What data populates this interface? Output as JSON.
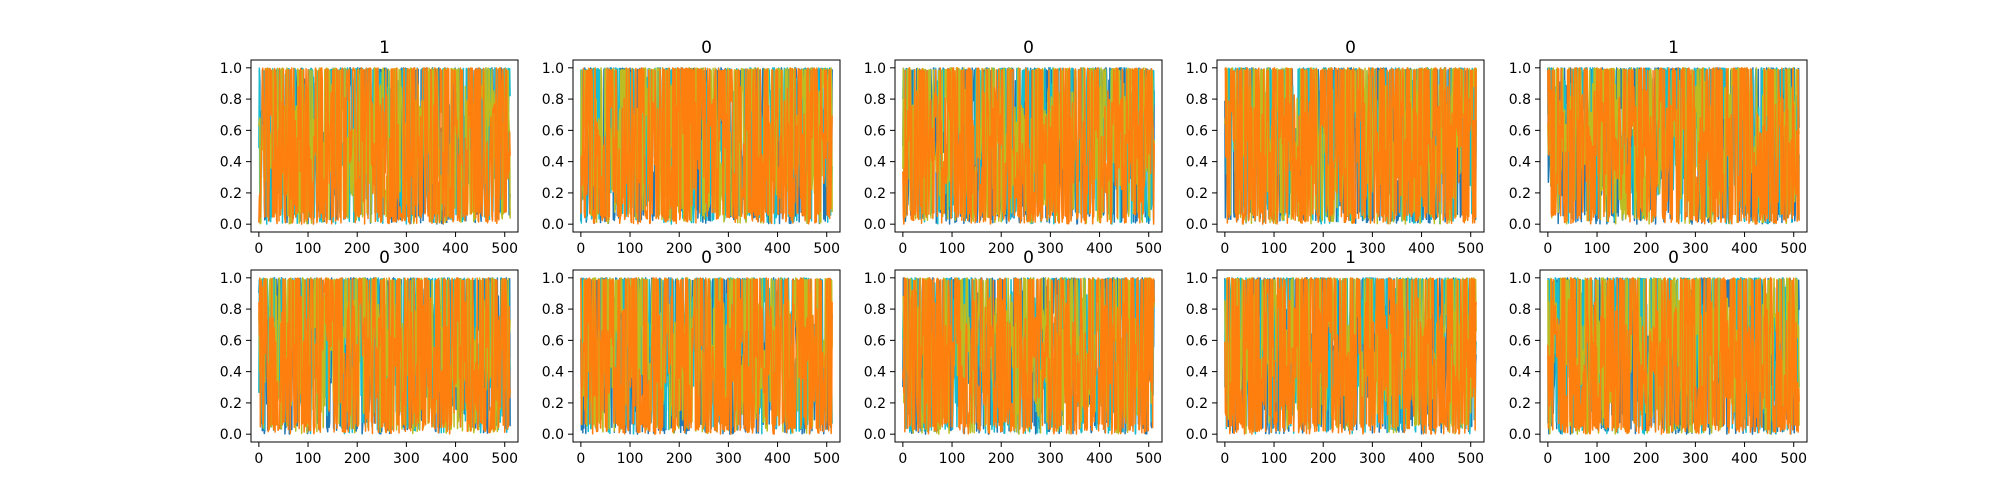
{
  "figure": {
    "layout": {
      "rows": 2,
      "cols": 5
    },
    "colors": {
      "series_a": "#1f77b4",
      "series_b": "#ff7f0e",
      "series_c": "#17becf",
      "series_d": "#bcbd22",
      "axes_edge": "#000000",
      "background": "#ffffff"
    }
  },
  "chart_data": [
    {
      "type": "line",
      "title": "1",
      "xlabel": "",
      "ylabel": "",
      "xlim": [
        -16,
        527
      ],
      "ylim": [
        -0.05,
        1.05
      ],
      "x_ticks": [
        0,
        100,
        200,
        300,
        400,
        500
      ],
      "x_tick_labels": [
        "0",
        "100",
        "200",
        "300",
        "400",
        "500"
      ],
      "y_ticks": [
        0.0,
        0.2,
        0.4,
        0.6,
        0.8,
        1.0
      ],
      "y_tick_labels": [
        "0.0",
        "0.2",
        "0.4",
        "0.6",
        "0.8",
        "1.0"
      ],
      "x": {
        "start": 0,
        "end": 511,
        "step": 1
      },
      "series": [
        {
          "color": "#1f77b4",
          "seed": 11,
          "lowBias": 0.35,
          "hi": 0.95
        },
        {
          "color": "#17becf",
          "seed": 12,
          "lowBias": 0.2,
          "hi": 0.98
        },
        {
          "color": "#bcbd22",
          "seed": 13,
          "lowBias": 0.15,
          "hi": 0.9
        },
        {
          "color": "#ff7f0e",
          "seed": 14,
          "lowBias": 0.6,
          "hi": 0.88
        }
      ],
      "grid": false
    },
    {
      "type": "line",
      "title": "0",
      "xlabel": "",
      "ylabel": "",
      "xlim": [
        -16,
        527
      ],
      "ylim": [
        -0.05,
        1.05
      ],
      "x_ticks": [
        0,
        100,
        200,
        300,
        400,
        500
      ],
      "x_tick_labels": [
        "0",
        "100",
        "200",
        "300",
        "400",
        "500"
      ],
      "y_ticks": [
        0.0,
        0.2,
        0.4,
        0.6,
        0.8,
        1.0
      ],
      "y_tick_labels": [
        "0.0",
        "0.2",
        "0.4",
        "0.6",
        "0.8",
        "1.0"
      ],
      "x": {
        "start": 0,
        "end": 511,
        "step": 1
      },
      "series": [
        {
          "color": "#1f77b4",
          "seed": 21,
          "lowBias": 0.35,
          "hi": 0.95
        },
        {
          "color": "#17becf",
          "seed": 22,
          "lowBias": 0.2,
          "hi": 0.98
        },
        {
          "color": "#bcbd22",
          "seed": 23,
          "lowBias": 0.15,
          "hi": 0.9
        },
        {
          "color": "#ff7f0e",
          "seed": 24,
          "lowBias": 0.6,
          "hi": 0.88
        }
      ],
      "grid": false
    },
    {
      "type": "line",
      "title": "0",
      "xlabel": "",
      "ylabel": "",
      "xlim": [
        -16,
        527
      ],
      "ylim": [
        -0.05,
        1.05
      ],
      "x_ticks": [
        0,
        100,
        200,
        300,
        400,
        500
      ],
      "x_tick_labels": [
        "0",
        "100",
        "200",
        "300",
        "400",
        "500"
      ],
      "y_ticks": [
        0.0,
        0.2,
        0.4,
        0.6,
        0.8,
        1.0
      ],
      "y_tick_labels": [
        "0.0",
        "0.2",
        "0.4",
        "0.6",
        "0.8",
        "1.0"
      ],
      "x": {
        "start": 0,
        "end": 511,
        "step": 1
      },
      "series": [
        {
          "color": "#1f77b4",
          "seed": 31,
          "lowBias": 0.35,
          "hi": 0.95
        },
        {
          "color": "#17becf",
          "seed": 32,
          "lowBias": 0.2,
          "hi": 0.98
        },
        {
          "color": "#bcbd22",
          "seed": 33,
          "lowBias": 0.15,
          "hi": 0.9
        },
        {
          "color": "#ff7f0e",
          "seed": 34,
          "lowBias": 0.6,
          "hi": 0.88
        }
      ],
      "grid": false
    },
    {
      "type": "line",
      "title": "0",
      "xlabel": "",
      "ylabel": "",
      "xlim": [
        -16,
        527
      ],
      "ylim": [
        -0.05,
        1.05
      ],
      "x_ticks": [
        0,
        100,
        200,
        300,
        400,
        500
      ],
      "x_tick_labels": [
        "0",
        "100",
        "200",
        "300",
        "400",
        "500"
      ],
      "y_ticks": [
        0.0,
        0.2,
        0.4,
        0.6,
        0.8,
        1.0
      ],
      "y_tick_labels": [
        "0.0",
        "0.2",
        "0.4",
        "0.6",
        "0.8",
        "1.0"
      ],
      "x": {
        "start": 0,
        "end": 511,
        "step": 1
      },
      "series": [
        {
          "color": "#1f77b4",
          "seed": 41,
          "lowBias": 0.35,
          "hi": 0.95
        },
        {
          "color": "#17becf",
          "seed": 42,
          "lowBias": 0.2,
          "hi": 0.98
        },
        {
          "color": "#bcbd22",
          "seed": 43,
          "lowBias": 0.15,
          "hi": 0.9
        },
        {
          "color": "#ff7f0e",
          "seed": 44,
          "lowBias": 0.6,
          "hi": 0.88
        }
      ],
      "grid": false
    },
    {
      "type": "line",
      "title": "1",
      "xlabel": "",
      "ylabel": "",
      "xlim": [
        -16,
        527
      ],
      "ylim": [
        -0.05,
        1.05
      ],
      "x_ticks": [
        0,
        100,
        200,
        300,
        400,
        500
      ],
      "x_tick_labels": [
        "0",
        "100",
        "200",
        "300",
        "400",
        "500"
      ],
      "y_ticks": [
        0.0,
        0.2,
        0.4,
        0.6,
        0.8,
        1.0
      ],
      "y_tick_labels": [
        "0.0",
        "0.2",
        "0.4",
        "0.6",
        "0.8",
        "1.0"
      ],
      "x": {
        "start": 0,
        "end": 511,
        "step": 1
      },
      "series": [
        {
          "color": "#1f77b4",
          "seed": 51,
          "lowBias": 0.35,
          "hi": 0.95
        },
        {
          "color": "#17becf",
          "seed": 52,
          "lowBias": 0.2,
          "hi": 0.98
        },
        {
          "color": "#bcbd22",
          "seed": 53,
          "lowBias": 0.15,
          "hi": 0.9
        },
        {
          "color": "#ff7f0e",
          "seed": 54,
          "lowBias": 0.6,
          "hi": 0.88
        }
      ],
      "grid": false
    },
    {
      "type": "line",
      "title": "0",
      "xlabel": "",
      "ylabel": "",
      "xlim": [
        -16,
        527
      ],
      "ylim": [
        -0.05,
        1.05
      ],
      "x_ticks": [
        0,
        100,
        200,
        300,
        400,
        500
      ],
      "x_tick_labels": [
        "0",
        "100",
        "200",
        "300",
        "400",
        "500"
      ],
      "y_ticks": [
        0.0,
        0.2,
        0.4,
        0.6,
        0.8,
        1.0
      ],
      "y_tick_labels": [
        "0.0",
        "0.2",
        "0.4",
        "0.6",
        "0.8",
        "1.0"
      ],
      "x": {
        "start": 0,
        "end": 511,
        "step": 1
      },
      "series": [
        {
          "color": "#1f77b4",
          "seed": 61,
          "lowBias": 0.35,
          "hi": 0.95
        },
        {
          "color": "#17becf",
          "seed": 62,
          "lowBias": 0.2,
          "hi": 0.98
        },
        {
          "color": "#bcbd22",
          "seed": 63,
          "lowBias": 0.15,
          "hi": 0.9
        },
        {
          "color": "#ff7f0e",
          "seed": 64,
          "lowBias": 0.6,
          "hi": 0.88
        }
      ],
      "grid": false
    },
    {
      "type": "line",
      "title": "0",
      "xlabel": "",
      "ylabel": "",
      "xlim": [
        -16,
        527
      ],
      "ylim": [
        -0.05,
        1.05
      ],
      "x_ticks": [
        0,
        100,
        200,
        300,
        400,
        500
      ],
      "x_tick_labels": [
        "0",
        "100",
        "200",
        "300",
        "400",
        "500"
      ],
      "y_ticks": [
        0.0,
        0.2,
        0.4,
        0.6,
        0.8,
        1.0
      ],
      "y_tick_labels": [
        "0.0",
        "0.2",
        "0.4",
        "0.6",
        "0.8",
        "1.0"
      ],
      "x": {
        "start": 0,
        "end": 511,
        "step": 1
      },
      "series": [
        {
          "color": "#1f77b4",
          "seed": 71,
          "lowBias": 0.35,
          "hi": 0.95
        },
        {
          "color": "#17becf",
          "seed": 72,
          "lowBias": 0.2,
          "hi": 0.98
        },
        {
          "color": "#bcbd22",
          "seed": 73,
          "lowBias": 0.15,
          "hi": 0.9
        },
        {
          "color": "#ff7f0e",
          "seed": 74,
          "lowBias": 0.6,
          "hi": 0.88
        }
      ],
      "grid": false
    },
    {
      "type": "line",
      "title": "0",
      "xlabel": "",
      "ylabel": "",
      "xlim": [
        -16,
        527
      ],
      "ylim": [
        -0.05,
        1.05
      ],
      "x_ticks": [
        0,
        100,
        200,
        300,
        400,
        500
      ],
      "x_tick_labels": [
        "0",
        "100",
        "200",
        "300",
        "400",
        "500"
      ],
      "y_ticks": [
        0.0,
        0.2,
        0.4,
        0.6,
        0.8,
        1.0
      ],
      "y_tick_labels": [
        "0.0",
        "0.2",
        "0.4",
        "0.6",
        "0.8",
        "1.0"
      ],
      "x": {
        "start": 0,
        "end": 511,
        "step": 1
      },
      "series": [
        {
          "color": "#1f77b4",
          "seed": 81,
          "lowBias": 0.35,
          "hi": 0.95
        },
        {
          "color": "#17becf",
          "seed": 82,
          "lowBias": 0.2,
          "hi": 0.98
        },
        {
          "color": "#bcbd22",
          "seed": 83,
          "lowBias": 0.15,
          "hi": 0.9
        },
        {
          "color": "#ff7f0e",
          "seed": 84,
          "lowBias": 0.6,
          "hi": 0.88
        }
      ],
      "grid": false
    },
    {
      "type": "line",
      "title": "1",
      "xlabel": "",
      "ylabel": "",
      "xlim": [
        -16,
        527
      ],
      "ylim": [
        -0.05,
        1.05
      ],
      "x_ticks": [
        0,
        100,
        200,
        300,
        400,
        500
      ],
      "x_tick_labels": [
        "0",
        "100",
        "200",
        "300",
        "400",
        "500"
      ],
      "y_ticks": [
        0.0,
        0.2,
        0.4,
        0.6,
        0.8,
        1.0
      ],
      "y_tick_labels": [
        "0.0",
        "0.2",
        "0.4",
        "0.6",
        "0.8",
        "1.0"
      ],
      "x": {
        "start": 0,
        "end": 511,
        "step": 1
      },
      "series": [
        {
          "color": "#1f77b4",
          "seed": 91,
          "lowBias": 0.35,
          "hi": 0.95
        },
        {
          "color": "#17becf",
          "seed": 92,
          "lowBias": 0.2,
          "hi": 0.98
        },
        {
          "color": "#bcbd22",
          "seed": 93,
          "lowBias": 0.15,
          "hi": 0.9
        },
        {
          "color": "#ff7f0e",
          "seed": 94,
          "lowBias": 0.6,
          "hi": 0.88
        }
      ],
      "grid": false
    },
    {
      "type": "line",
      "title": "0",
      "xlabel": "",
      "ylabel": "",
      "xlim": [
        -16,
        527
      ],
      "ylim": [
        -0.05,
        1.05
      ],
      "x_ticks": [
        0,
        100,
        200,
        300,
        400,
        500
      ],
      "x_tick_labels": [
        "0",
        "100",
        "200",
        "300",
        "400",
        "500"
      ],
      "y_ticks": [
        0.0,
        0.2,
        0.4,
        0.6,
        0.8,
        1.0
      ],
      "y_tick_labels": [
        "0.0",
        "0.2",
        "0.4",
        "0.6",
        "0.8",
        "1.0"
      ],
      "x": {
        "start": 0,
        "end": 511,
        "step": 1
      },
      "series": [
        {
          "color": "#1f77b4",
          "seed": 101,
          "lowBias": 0.35,
          "hi": 0.95
        },
        {
          "color": "#17becf",
          "seed": 102,
          "lowBias": 0.2,
          "hi": 0.98
        },
        {
          "color": "#bcbd22",
          "seed": 103,
          "lowBias": 0.15,
          "hi": 0.9
        },
        {
          "color": "#ff7f0e",
          "seed": 104,
          "lowBias": 0.6,
          "hi": 0.88
        }
      ],
      "grid": false
    }
  ]
}
